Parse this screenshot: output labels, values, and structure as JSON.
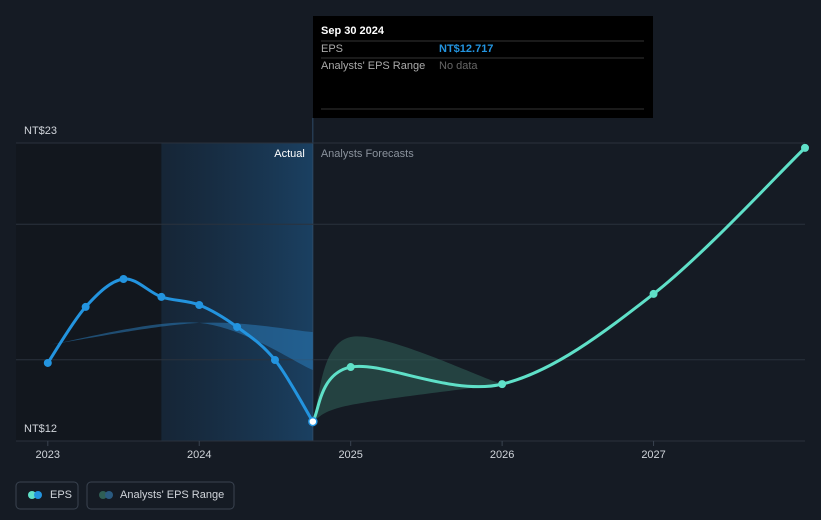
{
  "chart_data": {
    "type": "line",
    "xlim": [
      2022.79,
      2028.0
    ],
    "xticks": [
      2023,
      2024,
      2025,
      2026,
      2027
    ],
    "ylim": [
      12,
      23
    ],
    "yticks": [
      {
        "value": 12,
        "label": "NT$12"
      },
      {
        "value": 23,
        "label": "NT$23"
      }
    ],
    "ygrid": [
      15,
      20
    ],
    "divider_x": 2024.75,
    "past_year_from": 2023.75,
    "divider_labels": {
      "left": "Actual",
      "right": "Analysts Forecasts"
    },
    "series": [
      {
        "name": "EPS",
        "color": "#2394df",
        "forecast_color": "#5fe0c8",
        "x": [
          2023,
          2023.25,
          2023.5,
          2023.75,
          2024,
          2024.25,
          2024.5,
          2024.75,
          2025,
          2026,
          2027,
          2028
        ],
        "values": [
          14.88,
          16.95,
          17.98,
          17.32,
          17.02,
          16.21,
          14.99,
          12.717,
          14.73,
          14.1,
          17.43,
          22.82
        ]
      }
    ],
    "ranges": {
      "name": "Analysts' EPS Range",
      "color": "#2a7ab8",
      "forecast_color": "#2f5e55",
      "pieces": [
        {
          "x": [
            2023,
            2024,
            2024.75
          ],
          "low": [
            15.54,
            16.36,
            14.62
          ],
          "high": [
            15.54,
            16.36,
            16.02
          ]
        },
        {
          "x": [
            2024.75,
            2025,
            2026
          ],
          "low": [
            12.717,
            13.33,
            14.1
          ],
          "high": [
            12.717,
            15.84,
            14.1
          ]
        }
      ]
    },
    "tooltip": {
      "date": "Sep 30 2024",
      "rows": [
        [
          "EPS",
          "NT$12.717"
        ],
        [
          "Analysts' EPS Range",
          "No data"
        ]
      ]
    }
  }
}
